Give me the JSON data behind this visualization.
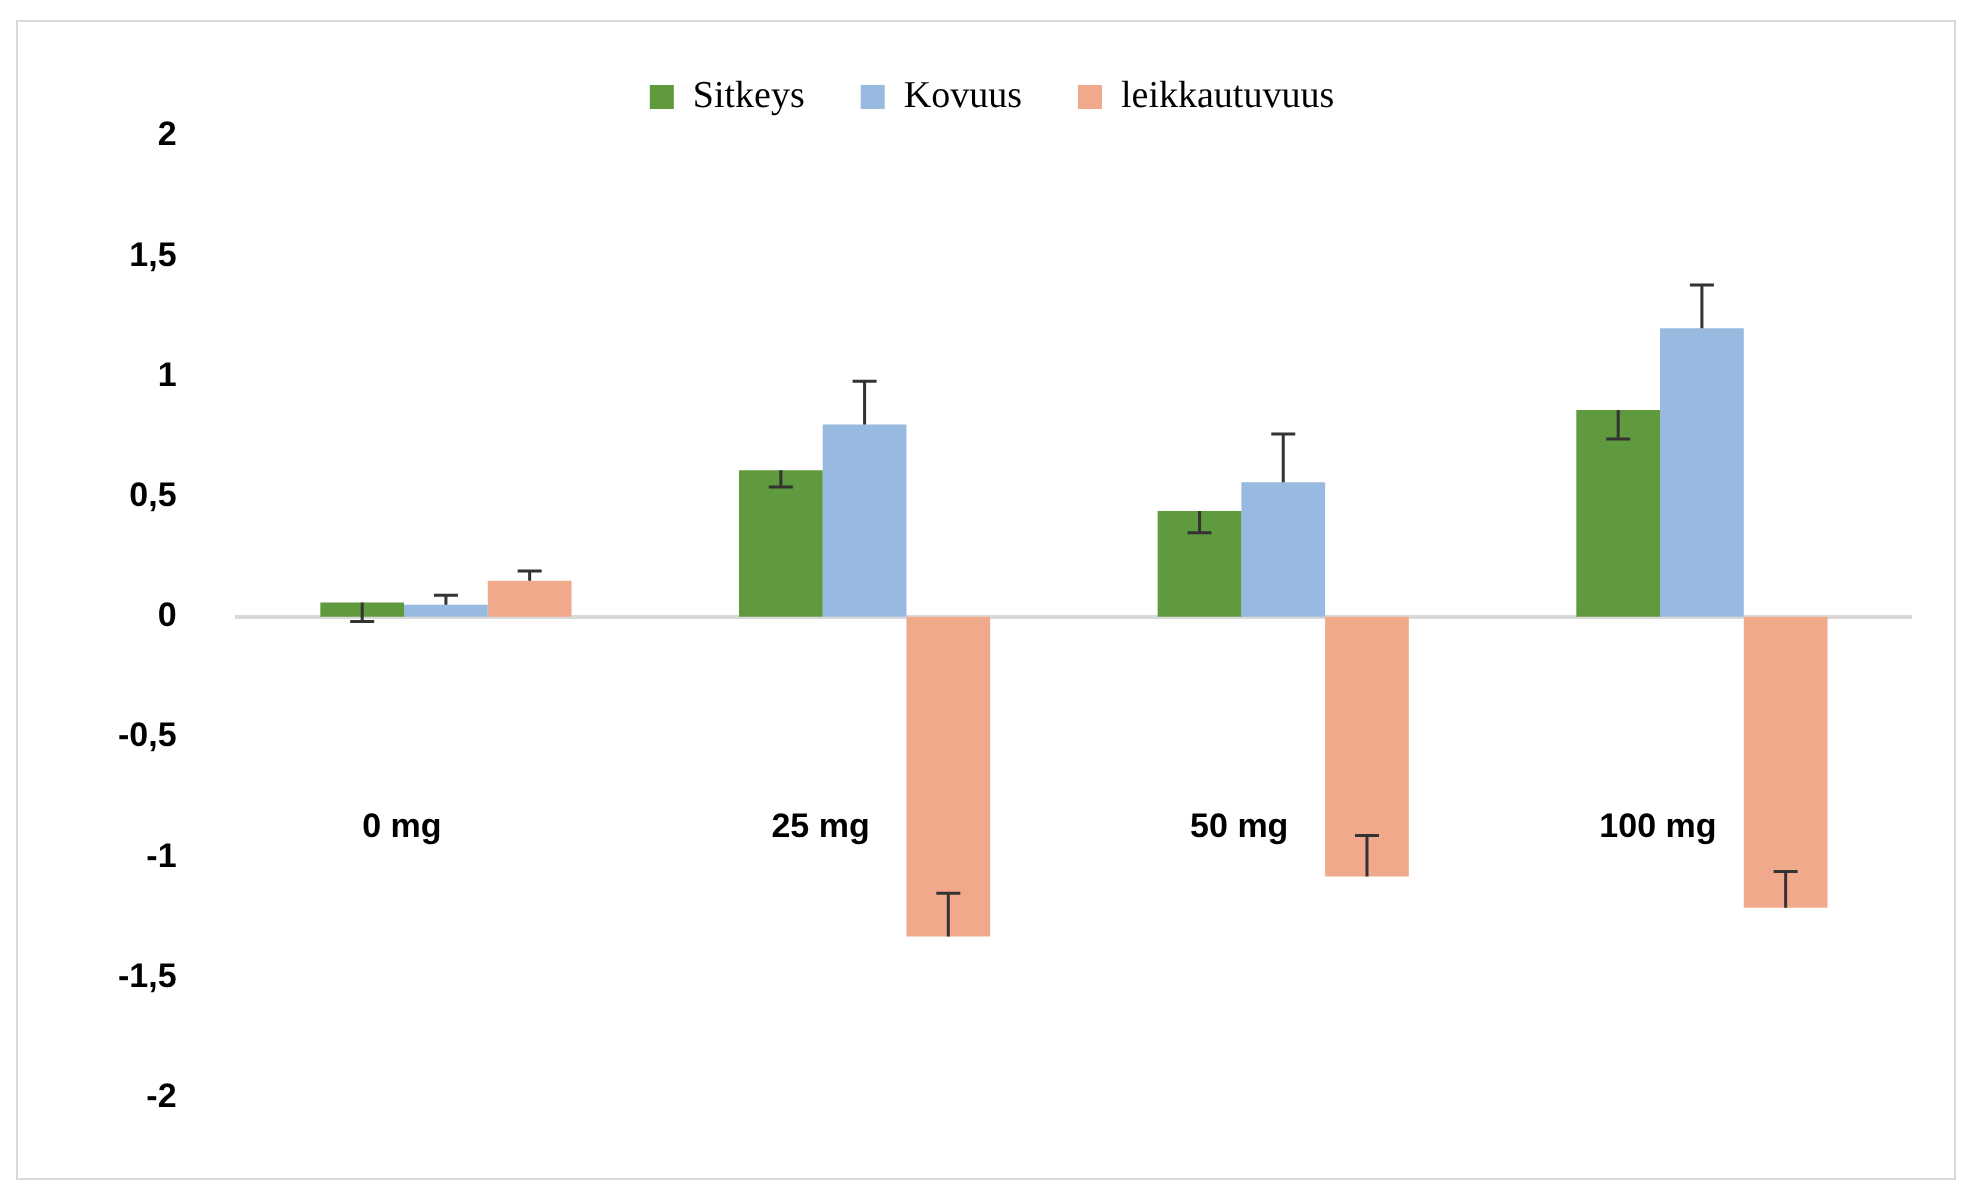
{
  "chart_data": {
    "type": "bar",
    "categories": [
      "0 mg",
      "25 mg",
      "50 mg",
      "100 mg"
    ],
    "series": [
      {
        "name": "Sitkeys",
        "color": "#5f9a3e",
        "values": [
          0.06,
          0.61,
          0.44,
          0.86
        ],
        "errors": [
          [
            -0.02,
            0.06
          ],
          [
            0.54,
            0.61
          ],
          [
            0.35,
            0.44
          ],
          [
            0.74,
            0.86
          ]
        ]
      },
      {
        "name": "Kovuus",
        "color": "#98b9e0",
        "values": [
          0.05,
          0.8,
          0.56,
          1.2
        ],
        "errors": [
          [
            0.05,
            0.09
          ],
          [
            0.8,
            0.98
          ],
          [
            0.56,
            0.76
          ],
          [
            1.2,
            1.38
          ]
        ]
      },
      {
        "name": "leikkautuvuus",
        "color": "#f0a98a",
        "values": [
          0.15,
          -1.33,
          -1.08,
          -1.21
        ],
        "errors": [
          [
            0.15,
            0.19
          ],
          [
            -1.33,
            -1.15
          ],
          [
            -1.08,
            -0.91
          ],
          [
            -1.21,
            -1.06
          ]
        ]
      }
    ],
    "ylim": [
      -2,
      2
    ],
    "yticks": [
      -2,
      {
        "value": -1.5,
        "label": "-1,5"
      },
      -1,
      {
        "value": -0.5,
        "label": "-0,5"
      },
      0,
      {
        "value": 0.5,
        "label": "0,5"
      },
      1,
      {
        "value": 1.5,
        "label": "1,5"
      },
      2
    ],
    "legend": "top"
  }
}
